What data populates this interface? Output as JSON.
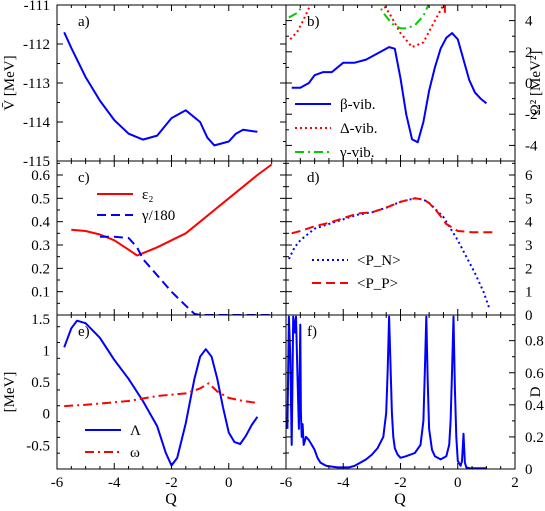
{
  "chart_data": [
    {
      "panel": "a)",
      "type": "line",
      "ylabel": "V̄ [MeV]",
      "xlim": [
        -6,
        2
      ],
      "ylim": [
        -115,
        -111
      ],
      "yticks": [
        "-115",
        "-114",
        "-113",
        "-112",
        "-111"
      ],
      "series": [
        {
          "color": "#0000ff",
          "style": "solid",
          "x": [
            -5.75,
            -5.5,
            -5,
            -4.5,
            -4,
            -3.5,
            -3,
            -2.5,
            -2,
            -1.5,
            -1,
            -0.75,
            -0.5,
            0,
            0.25,
            0.5,
            1
          ],
          "y": [
            -111.7,
            -112.1,
            -112.85,
            -113.45,
            -113.95,
            -114.3,
            -114.45,
            -114.35,
            -113.9,
            -113.7,
            -114.0,
            -114.4,
            -114.6,
            -114.5,
            -114.3,
            -114.2,
            -114.25
          ]
        }
      ]
    },
    {
      "panel": "b)",
      "type": "line",
      "ylabel": "Ω² [MeV²]",
      "xlim": [
        -6,
        2
      ],
      "ylim": [
        -5,
        5
      ],
      "yticks": [
        "-4",
        "-2",
        "0",
        "2",
        "4"
      ],
      "legend": [
        "β-vib.",
        "Δ-vib.",
        "γ-vib."
      ],
      "series": [
        {
          "name": "β-vib.",
          "color": "#0000ff",
          "style": "solid",
          "x": [
            -5.8,
            -5.5,
            -5.2,
            -5.0,
            -4.7,
            -4.4,
            -4.0,
            -3.6,
            -3.2,
            -2.8,
            -2.4,
            -2.2,
            -2.0,
            -1.8,
            -1.6,
            -1.4,
            -1.2,
            -1.0,
            -0.8,
            -0.6,
            -0.4,
            -0.2,
            0.0,
            0.2,
            0.4,
            0.6,
            0.8,
            1.0
          ],
          "y": [
            -0.3,
            -0.3,
            0.0,
            0.5,
            0.7,
            0.7,
            1.3,
            1.3,
            1.5,
            1.9,
            2.3,
            2.2,
            0.3,
            -2.0,
            -3.6,
            -3.8,
            -2.5,
            -0.5,
            1.0,
            2.2,
            2.9,
            3.2,
            2.8,
            1.5,
            0.2,
            -0.6,
            -1.0,
            -1.3
          ]
        },
        {
          "name": "Δ-vib.",
          "color": "#ff0000",
          "style": "dotted",
          "x": [
            -5.85,
            -5.6,
            -5.4,
            -5.2,
            -5.0,
            -4.8,
            -4.6,
            -4.4,
            -4.2,
            -4.0,
            -3.6,
            -3.2,
            -2.8,
            -2.4,
            -2.0,
            -1.6,
            -1.2,
            -0.8,
            -0.5,
            -0.3
          ],
          "y": [
            2.8,
            3.3,
            4.0,
            4.8,
            5.6,
            5.6,
            5.6,
            5.6,
            5.6,
            5.6,
            5.6,
            5.6,
            5.5,
            4.5,
            3.2,
            2.3,
            2.6,
            4.0,
            5.0,
            5.6
          ]
        },
        {
          "name": "γ-vib.",
          "color": "#00cc00",
          "style": "dashdot",
          "x": [
            -5.9,
            -5.6,
            -5.4,
            -5.2
          ],
          "y": [
            4.2,
            4.5,
            5.0,
            5.5
          ]
        },
        {
          "name": "γ-vib.",
          "color": "#00cc00",
          "style": "dashdot",
          "x": [
            -2.9,
            -2.6,
            -2.3,
            -2.0,
            -1.8,
            -1.5,
            -1.2,
            -0.9
          ],
          "y": [
            5.5,
            4.5,
            3.8,
            3.5,
            3.5,
            3.7,
            4.3,
            5.5
          ]
        },
        {
          "name": "",
          "color": "#ff0000",
          "style": "solid",
          "x": [
            -0.45,
            -0.45
          ],
          "y": [
            4.5,
            5.5
          ]
        }
      ]
    },
    {
      "panel": "c)",
      "type": "line",
      "xlim": [
        -6,
        2
      ],
      "ylim": [
        0,
        0.66
      ],
      "yticks": [
        "0.1",
        "0.2",
        "0.3",
        "0.4",
        "0.5",
        "0.6"
      ],
      "legend": [
        "ε₂",
        "γ/180"
      ],
      "series": [
        {
          "name": "ε₂",
          "color": "#ff0000",
          "style": "solid",
          "x": [
            -5.5,
            -5,
            -4.5,
            -4,
            -3.5,
            -3.2,
            -3,
            -2.5,
            -2,
            -1.5,
            -1,
            -0.5,
            0,
            0.5,
            1,
            1.5
          ],
          "y": [
            0.365,
            0.36,
            0.345,
            0.32,
            0.28,
            0.255,
            0.265,
            0.29,
            0.32,
            0.35,
            0.4,
            0.45,
            0.5,
            0.55,
            0.6,
            0.645
          ]
        },
        {
          "name": "γ/180",
          "color": "#0000ff",
          "style": "dashed",
          "x": [
            -4.5,
            -4,
            -3.5,
            -3.2,
            -3,
            -2.5,
            -2,
            -1.5,
            -1.2,
            -1,
            0,
            1,
            1.5
          ],
          "y": [
            0.335,
            0.335,
            0.33,
            0.29,
            0.24,
            0.17,
            0.1,
            0.04,
            0.005,
            0,
            0,
            0,
            0
          ]
        }
      ]
    },
    {
      "panel": "d)",
      "type": "line",
      "xlim": [
        -6,
        2
      ],
      "ylim": [
        0,
        6.6
      ],
      "yticks": [
        "0",
        "1",
        "2",
        "3",
        "4",
        "5",
        "6"
      ],
      "legend": [
        "<P_N>",
        "<P_P>"
      ],
      "series": [
        {
          "name": "<P_N>",
          "color": "#0000ff",
          "style": "dotted",
          "x": [
            -5.9,
            -5.7,
            -5.5,
            -5.2,
            -5,
            -4.5,
            -4,
            -3.5,
            -3,
            -2.5,
            -2,
            -1.5,
            -1.2,
            -1,
            -0.5,
            0,
            0.3,
            0.6,
            0.9,
            1.1
          ],
          "y": [
            2.4,
            2.9,
            3.2,
            3.5,
            3.7,
            3.9,
            4.1,
            4.3,
            4.4,
            4.6,
            4.85,
            5.0,
            4.95,
            4.8,
            4.2,
            3.2,
            2.5,
            1.8,
            1.0,
            0.3
          ]
        },
        {
          "name": "<P_P>",
          "color": "#ff0000",
          "style": "dashed",
          "x": [
            -5.8,
            -5.5,
            -5,
            -4.5,
            -4,
            -3.5,
            -3,
            -2.5,
            -2,
            -1.5,
            -1.2,
            -1,
            -0.7,
            -0.4,
            0,
            0.5,
            1,
            1.3
          ],
          "y": [
            3.5,
            3.6,
            3.8,
            3.95,
            4.15,
            4.35,
            4.4,
            4.6,
            4.85,
            5.0,
            4.95,
            4.8,
            4.4,
            3.9,
            3.6,
            3.55,
            3.55,
            3.55
          ]
        }
      ]
    },
    {
      "panel": "e)",
      "type": "line",
      "ylabel": "[MeV]",
      "xlabel": "Q",
      "xlim": [
        -6,
        2
      ],
      "ylim": [
        -0.875,
        1.56
      ],
      "yticks": [
        "-0.5",
        "0",
        "0.5",
        "1",
        "1.5"
      ],
      "xticks": [
        "-6",
        "-4",
        "-2",
        "0"
      ],
      "legend": [
        "Λ",
        "ω"
      ],
      "series": [
        {
          "name": "Λ",
          "color": "#0000ff",
          "style": "solid",
          "x": [
            -5.75,
            -5.5,
            -5.3,
            -5.0,
            -4.5,
            -4.0,
            -3.5,
            -3.0,
            -2.5,
            -2.2,
            -2.0,
            -1.8,
            -1.5,
            -1.2,
            -1.0,
            -0.8,
            -0.6,
            -0.4,
            -0.2,
            0.0,
            0.2,
            0.4,
            0.6,
            0.8,
            1.0
          ],
          "y": [
            1.05,
            1.35,
            1.47,
            1.43,
            1.2,
            0.85,
            0.55,
            0.2,
            -0.2,
            -0.62,
            -0.82,
            -0.7,
            -0.15,
            0.55,
            0.9,
            1.02,
            0.9,
            0.55,
            0.1,
            -0.3,
            -0.45,
            -0.48,
            -0.35,
            -0.18,
            -0.05
          ]
        },
        {
          "name": "ω",
          "color": "#ff0000",
          "style": "dashdot",
          "x": [
            -5.75,
            -5,
            -4.5,
            -4,
            -3.5,
            -3,
            -2.5,
            -2,
            -1.5,
            -1,
            -0.7,
            -0.4,
            0,
            0.5,
            1
          ],
          "y": [
            0.12,
            0.14,
            0.16,
            0.18,
            0.2,
            0.24,
            0.28,
            0.3,
            0.32,
            0.4,
            0.48,
            0.35,
            0.25,
            0.2,
            0.17
          ]
        }
      ]
    },
    {
      "panel": "f)",
      "type": "line",
      "ylabel": "D",
      "xlabel": "Q",
      "xlim": [
        -6,
        2
      ],
      "ylim": [
        0,
        0.96
      ],
      "yticks": [
        "0",
        "0.2",
        "0.4",
        "0.6",
        "0.8"
      ],
      "xticks": [
        "-6",
        "-4",
        "-2",
        "0",
        "2"
      ],
      "series": [
        {
          "color": "#0000ff",
          "style": "solid",
          "x": [
            -5.95,
            -5.9,
            -5.85,
            -5.8,
            -5.78,
            -5.75,
            -5.7,
            -5.65,
            -5.6,
            -5.55,
            -5.5,
            -5.48,
            -5.45,
            -5.42,
            -5.38,
            -5.3,
            -5.2,
            -5.1,
            -5.0,
            -4.9,
            -4.8,
            -4.6,
            -4.4,
            -4.2,
            -4.0,
            -3.8,
            -3.6,
            -3.4,
            -3.2,
            -3.0,
            -2.8,
            -2.6,
            -2.5,
            -2.45,
            -2.4,
            -2.35,
            -2.3,
            -2.25,
            -2.2,
            -2.1,
            -2.0,
            -1.8,
            -1.5,
            -1.3,
            -1.2,
            -1.15,
            -1.1,
            -1.05,
            -1.0,
            -0.9,
            -0.8,
            -0.6,
            -0.4,
            -0.3,
            -0.25,
            -0.2,
            -0.15,
            -0.1,
            -0.05,
            0.0,
            0.1,
            0.15,
            0.18,
            0.2,
            0.22,
            0.25,
            0.3,
            0.4,
            0.6,
            0.8,
            1.0
          ],
          "y": [
            0.25,
            0.95,
            0.7,
            0.15,
            0.45,
            0.95,
            0.85,
            0.95,
            0.6,
            0.25,
            0.9,
            0.35,
            0.2,
            0.28,
            0.15,
            0.2,
            0.18,
            0.15,
            0.12,
            0.07,
            0.04,
            0.02,
            0.015,
            0.01,
            0.01,
            0.01,
            0.02,
            0.04,
            0.06,
            0.09,
            0.13,
            0.2,
            0.35,
            0.6,
            0.95,
            0.65,
            0.35,
            0.2,
            0.13,
            0.09,
            0.07,
            0.08,
            0.1,
            0.15,
            0.3,
            0.6,
            0.95,
            0.55,
            0.25,
            0.12,
            0.08,
            0.06,
            0.08,
            0.15,
            0.3,
            0.6,
            0.95,
            0.5,
            0.2,
            0.05,
            0.02,
            0.05,
            0.15,
            0.22,
            0.15,
            0.04,
            0.01,
            0.005,
            0.005,
            0.005,
            0.005
          ]
        }
      ]
    }
  ]
}
